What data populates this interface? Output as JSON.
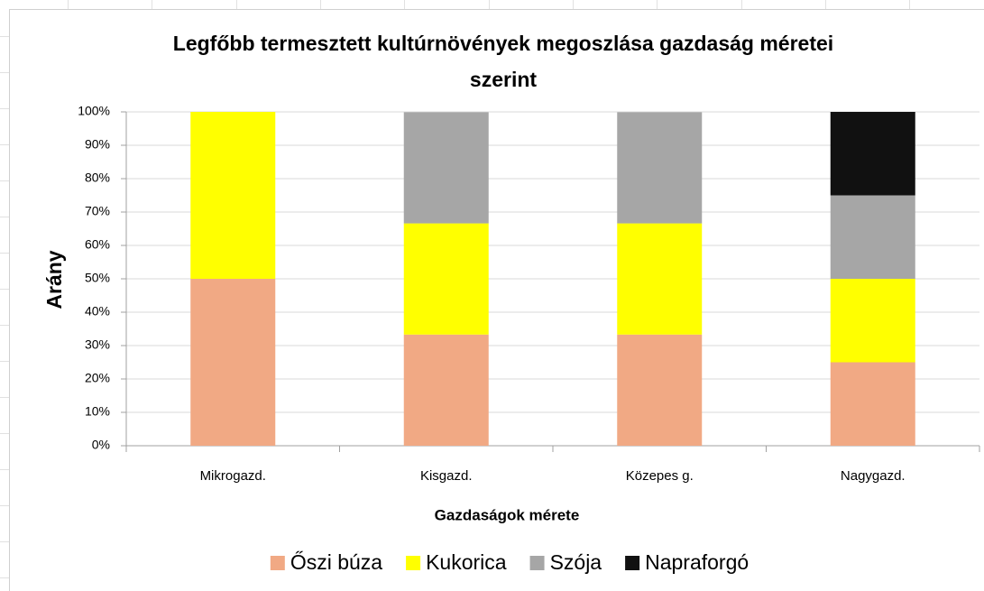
{
  "chart_data": {
    "type": "stacked_bar",
    "title": "Legfőbb termesztett kultúrnövények megoszlása gazdaság méretei szerint",
    "x_label": "Gazdaságok mérete",
    "y_label": "Arány",
    "categories": [
      "Mikrogazd.",
      "Kisgazd.",
      "Közepes g.",
      "Nagygazd."
    ],
    "series": [
      {
        "name": "Őszi búza",
        "color": "#f1a984",
        "values": [
          50,
          33.3,
          33.3,
          25
        ]
      },
      {
        "name": "Kukorica",
        "color": "#ffff00",
        "values": [
          50,
          33.3,
          33.3,
          25
        ]
      },
      {
        "name": "Szója",
        "color": "#a6a6a6",
        "values": [
          0,
          33.3,
          33.3,
          25
        ]
      },
      {
        "name": "Napraforgó",
        "color": "#111111",
        "values": [
          0,
          0,
          0,
          25
        ]
      }
    ],
    "ylim": [
      0,
      100
    ],
    "yticks": [
      {
        "value": 0,
        "label": "0%"
      },
      {
        "value": 10,
        "label": "10%"
      },
      {
        "value": 20,
        "label": "20%"
      },
      {
        "value": 30,
        "label": "30%"
      },
      {
        "value": 40,
        "label": "40%"
      },
      {
        "value": 50,
        "label": "50%"
      },
      {
        "value": 60,
        "label": "60%"
      },
      {
        "value": 70,
        "label": "70%"
      },
      {
        "value": 80,
        "label": "80%"
      },
      {
        "value": 90,
        "label": "90%"
      },
      {
        "value": 100,
        "label": "100%"
      }
    ],
    "grid": true,
    "legend": "bottom"
  }
}
